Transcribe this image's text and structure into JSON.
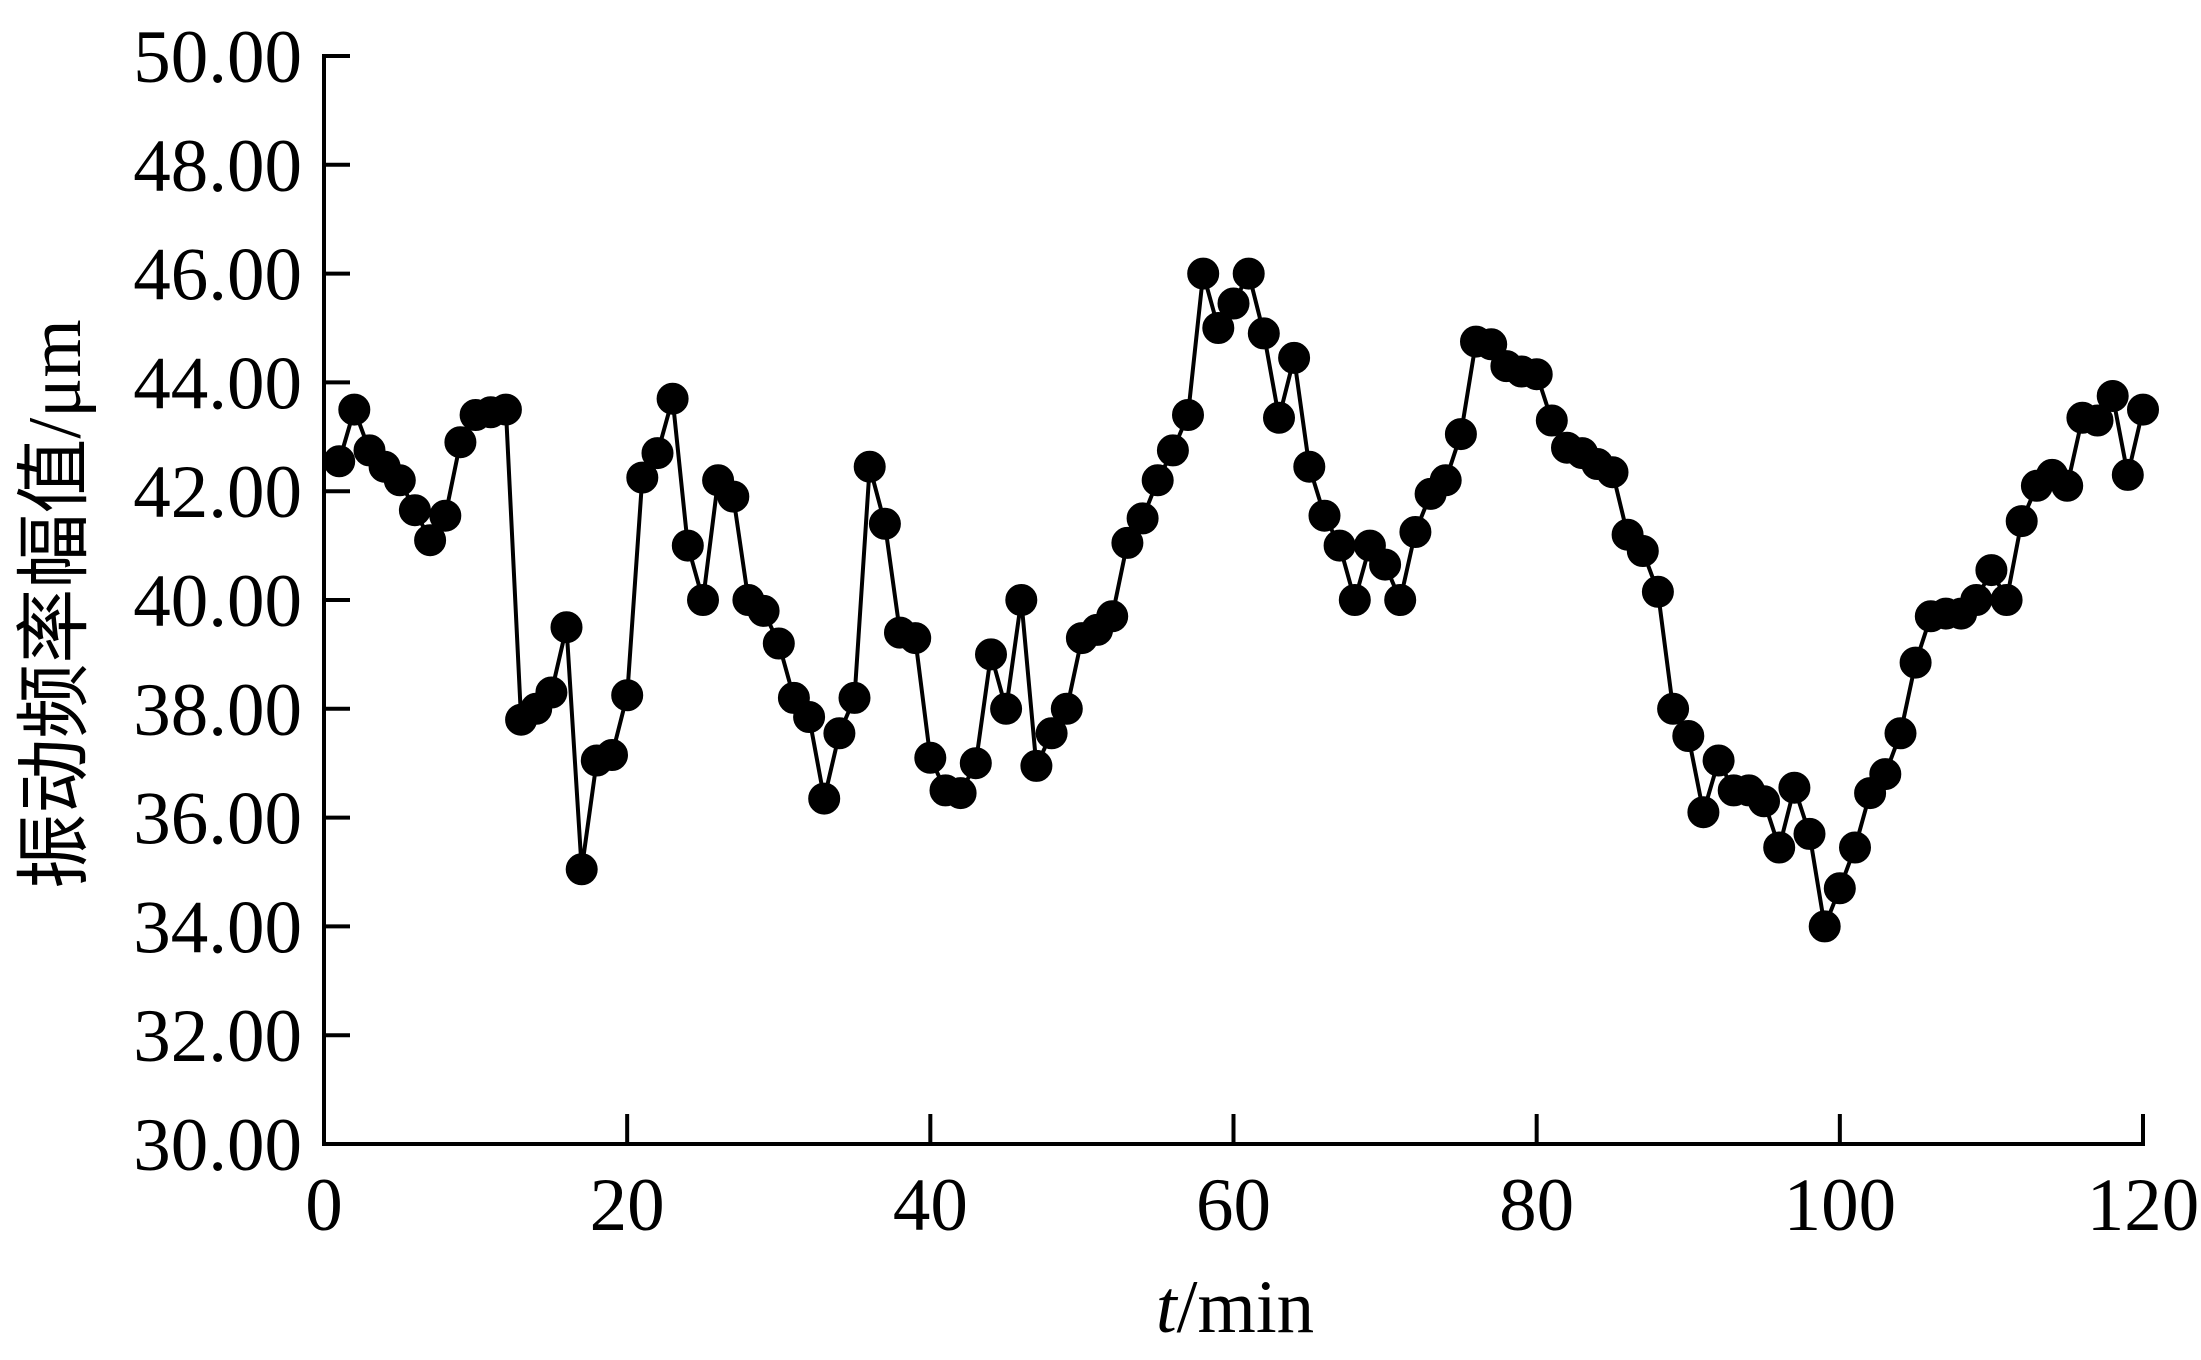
{
  "chart_data": {
    "type": "line",
    "x": [
      1,
      2,
      3,
      4,
      5,
      6,
      7,
      8,
      9,
      10,
      11,
      12,
      13,
      14,
      15,
      16,
      17,
      18,
      19,
      20,
      21,
      22,
      23,
      24,
      25,
      26,
      27,
      28,
      29,
      30,
      31,
      32,
      33,
      34,
      35,
      36,
      37,
      38,
      39,
      40,
      41,
      42,
      43,
      44,
      45,
      46,
      47,
      48,
      49,
      50,
      51,
      52,
      53,
      54,
      55,
      56,
      57,
      58,
      59,
      60,
      61,
      62,
      63,
      64,
      65,
      66,
      67,
      68,
      69,
      70,
      71,
      72,
      73,
      74,
      75,
      76,
      77,
      78,
      79,
      80,
      81,
      82,
      83,
      84,
      85,
      86,
      87,
      88,
      89,
      90,
      91,
      92,
      93,
      94,
      95,
      96,
      97,
      98,
      99,
      100,
      101,
      102,
      103,
      104,
      105,
      106,
      107,
      108,
      109,
      110,
      111,
      112,
      113,
      114,
      115,
      116,
      117,
      118,
      119,
      120
    ],
    "series": [
      {
        "values": [
          42.55,
          43.5,
          42.75,
          42.45,
          42.2,
          41.65,
          41.1,
          41.55,
          42.9,
          43.4,
          43.45,
          43.5,
          37.8,
          38.0,
          38.3,
          39.5,
          35.05,
          37.05,
          37.15,
          38.25,
          42.25,
          42.7,
          43.7,
          41.0,
          40.0,
          42.2,
          41.9,
          40.0,
          39.8,
          39.2,
          38.2,
          37.85,
          36.35,
          37.55,
          38.2,
          42.45,
          41.4,
          39.4,
          39.3,
          37.1,
          36.5,
          36.45,
          37.0,
          39.0,
          38.0,
          40.0,
          36.95,
          37.55,
          38.0,
          39.3,
          39.45,
          39.7,
          41.05,
          41.5,
          42.2,
          42.75,
          43.4,
          46.0,
          45.0,
          45.45,
          46.0,
          44.9,
          43.35,
          44.45,
          42.45,
          41.55,
          41.0,
          40.0,
          41.0,
          40.65,
          40.0,
          41.25,
          41.95,
          42.2,
          43.05,
          44.75,
          44.7,
          44.3,
          44.2,
          44.15,
          43.3,
          42.8,
          42.7,
          42.5,
          42.35,
          41.2,
          40.9,
          40.15,
          38.0,
          37.5,
          36.1,
          37.05,
          36.5,
          36.5,
          36.3,
          35.45,
          36.55,
          35.7,
          34.0,
          34.7,
          35.45,
          36.45,
          36.8,
          37.55,
          38.85,
          39.7,
          39.75,
          39.75,
          40.0,
          40.55,
          40.0,
          41.45,
          42.1,
          42.3,
          42.1,
          43.35,
          43.3,
          43.75,
          42.3,
          43.5
        ],
        "marker": "circle",
        "color": "#000000"
      }
    ],
    "xlabel": {
      "variable": "t",
      "unit": "/min"
    },
    "ylabel": "振动频率幅值/μm",
    "xlim": [
      0,
      120
    ],
    "ylim": [
      30,
      50
    ],
    "xticks": [
      "0",
      "20",
      "40",
      "60",
      "80",
      "100",
      "120"
    ],
    "yticks": [
      "30.00",
      "32.00",
      "34.00",
      "36.00",
      "38.00",
      "40.00",
      "42.00",
      "44.00",
      "46.00",
      "48.00",
      "50.00"
    ],
    "grid": false
  }
}
